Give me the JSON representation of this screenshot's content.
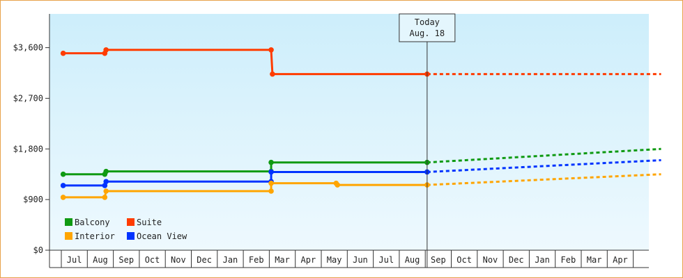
{
  "chart_data": {
    "type": "line",
    "step": true,
    "y_ticks": [
      0,
      900,
      1800,
      2700,
      3600
    ],
    "y_tick_labels": [
      "$0",
      "$900",
      "$1,800",
      "$2,700",
      "$3,600"
    ],
    "ylim": [
      0,
      4200
    ],
    "months": [
      "Jul",
      "Aug",
      "Sep",
      "Oct",
      "Nov",
      "Dec",
      "Jan",
      "Feb",
      "Mar",
      "Apr",
      "May",
      "Jun",
      "Jul",
      "Aug",
      "Sep",
      "Oct",
      "Nov",
      "Dec",
      "Jan",
      "Feb",
      "Mar",
      "Apr"
    ],
    "today": {
      "line1": "Today",
      "line2": "Aug. 18",
      "x": 14.0
    },
    "legend": {
      "position": "bottom-left"
    },
    "series": [
      {
        "name": "Suite",
        "color": "#ff3c00",
        "points": [
          [
            0,
            3500
          ],
          [
            1.6,
            3500
          ],
          [
            1.65,
            3560
          ],
          [
            8.0,
            3560
          ],
          [
            8.05,
            3130
          ],
          [
            14.0,
            3130
          ]
        ],
        "markers": [
          [
            0,
            3500
          ],
          [
            1.6,
            3500
          ],
          [
            1.65,
            3560
          ],
          [
            8.0,
            3560
          ],
          [
            8.05,
            3130
          ],
          [
            14.0,
            3130
          ]
        ],
        "forecast": [
          [
            14.0,
            3130
          ],
          [
            23.0,
            3130
          ]
        ]
      },
      {
        "name": "Balcony",
        "color": "#0f9a12",
        "points": [
          [
            0,
            1350
          ],
          [
            1.6,
            1350
          ],
          [
            1.65,
            1400
          ],
          [
            8.0,
            1400
          ],
          [
            8.0,
            1560
          ],
          [
            14.0,
            1560
          ]
        ],
        "markers": [
          [
            0,
            1350
          ],
          [
            1.6,
            1350
          ],
          [
            1.65,
            1400
          ],
          [
            8.0,
            1400
          ],
          [
            8.0,
            1560
          ],
          [
            14.0,
            1560
          ]
        ],
        "forecast": [
          [
            14.0,
            1560
          ],
          [
            23.0,
            1800
          ]
        ]
      },
      {
        "name": "Ocean View",
        "color": "#0033ff",
        "points": [
          [
            0,
            1150
          ],
          [
            1.6,
            1150
          ],
          [
            1.65,
            1220
          ],
          [
            8.0,
            1220
          ],
          [
            8.0,
            1390
          ],
          [
            14.0,
            1390
          ]
        ],
        "markers": [
          [
            0,
            1150
          ],
          [
            1.6,
            1150
          ],
          [
            1.65,
            1220
          ],
          [
            8.0,
            1220
          ],
          [
            8.0,
            1390
          ],
          [
            14.0,
            1390
          ]
        ],
        "forecast": [
          [
            14.0,
            1390
          ],
          [
            23.0,
            1600
          ]
        ]
      },
      {
        "name": "Interior",
        "color": "#ffa500",
        "points": [
          [
            0,
            940
          ],
          [
            1.6,
            940
          ],
          [
            1.65,
            1050
          ],
          [
            8.0,
            1050
          ],
          [
            8.0,
            1190
          ],
          [
            10.5,
            1190
          ],
          [
            10.55,
            1160
          ],
          [
            14.0,
            1160
          ]
        ],
        "markers": [
          [
            0,
            940
          ],
          [
            1.6,
            940
          ],
          [
            1.65,
            1050
          ],
          [
            8.0,
            1050
          ],
          [
            8.0,
            1190
          ],
          [
            10.5,
            1190
          ],
          [
            10.55,
            1160
          ],
          [
            14.0,
            1160
          ]
        ],
        "forecast": [
          [
            14.0,
            1160
          ],
          [
            23.0,
            1350
          ]
        ]
      }
    ],
    "legend_order": [
      "Balcony",
      "Suite",
      "Interior",
      "Ocean View"
    ]
  }
}
